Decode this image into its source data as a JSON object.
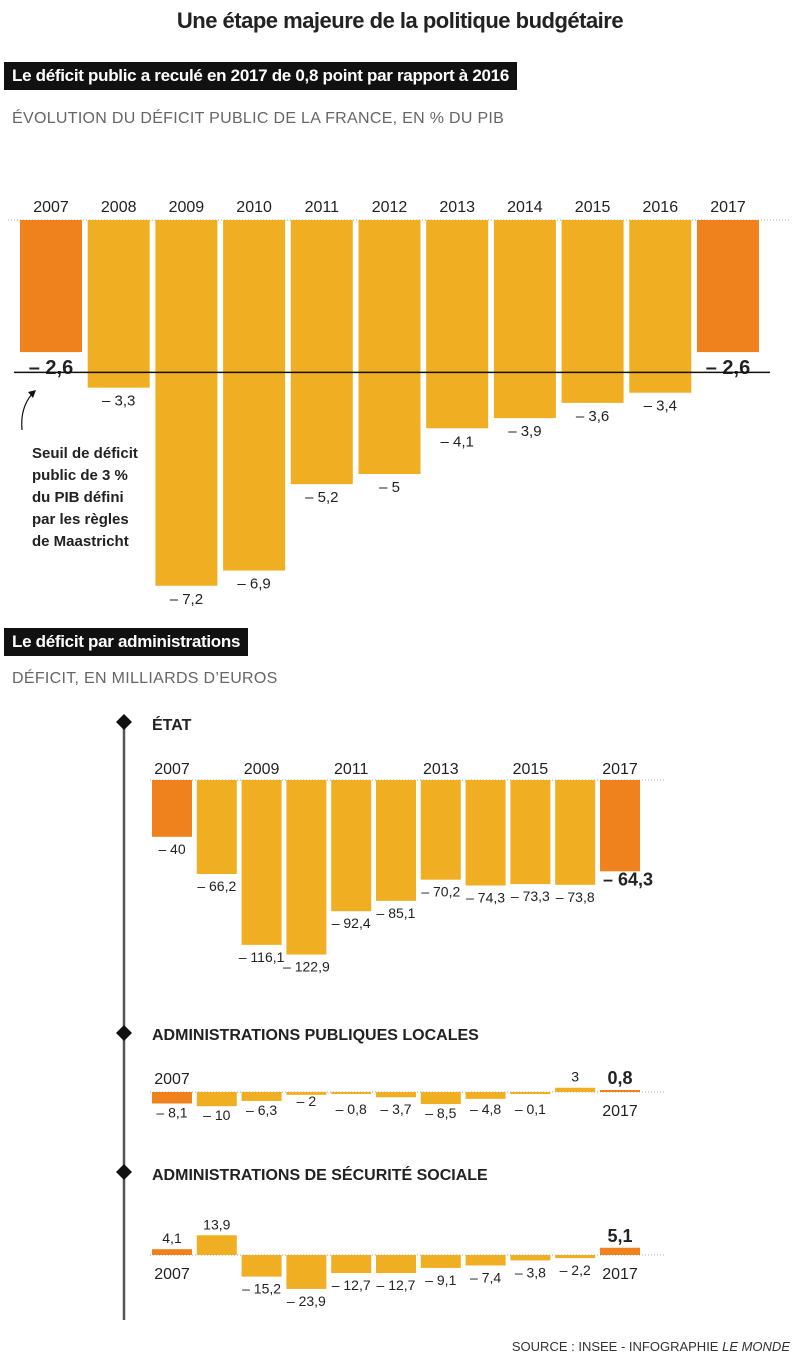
{
  "title": "Une étape majeure de la politique budgétaire",
  "section1": {
    "band": "Le déficit public a reculé en 2017 de 0,8 point par rapport à 2016",
    "subtitle": "ÉVOLUTION DU DÉFICIT PUBLIC DE LA FRANCE, EN % DU PIB"
  },
  "section2": {
    "band": "Le déficit par administrations",
    "subtitle": "DÉFICIT, EN  MILLIARDS D’EUROS"
  },
  "source": "SOURCE : INSEE - INFOGRAPHIE ",
  "source_brand": "LE MONDE",
  "colors": {
    "highlight": "#f0821e",
    "bar": "#f0ae23",
    "axis": "#111111"
  },
  "chart_data": [
    {
      "type": "bar",
      "title": "ÉVOLUTION DU DÉFICIT PUBLIC DE LA FRANCE, EN % DU PIB",
      "categories": [
        "2007",
        "2008",
        "2009",
        "2010",
        "2011",
        "2012",
        "2013",
        "2014",
        "2015",
        "2016",
        "2017"
      ],
      "values": [
        -2.6,
        -3.3,
        -7.2,
        -6.9,
        -5.2,
        -5,
        -4.1,
        -3.9,
        -3.6,
        -3.4,
        -2.6
      ],
      "labels": [
        "– 2,6",
        "– 3,3",
        "– 7,2",
        "– 6,9",
        "– 5,2",
        "– 5",
        "– 4,1",
        "– 3,9",
        "– 3,6",
        "– 3,4",
        "– 2,6"
      ],
      "highlight": [
        "2007",
        "2017"
      ],
      "reference_line": {
        "value": -3,
        "annotation": [
          "Seuil de déficit",
          "public de 3 %",
          "du PIB défini",
          "par les règles",
          "de Maastricht"
        ]
      }
    },
    {
      "type": "bar",
      "title": "ÉTAT",
      "categories": [
        "2007",
        "2008",
        "2009",
        "2010",
        "2011",
        "2012",
        "2013",
        "2014",
        "2015",
        "2016",
        "2017"
      ],
      "tick_labels": [
        "2007",
        "2009",
        "2011",
        "2013",
        "2015",
        "2017"
      ],
      "values": [
        -40,
        -66.2,
        -116.1,
        -122.9,
        -92.4,
        -85.1,
        -70.2,
        -74.3,
        -73.3,
        -73.8,
        -64.3
      ],
      "labels": [
        "– 40",
        "– 66,2",
        "– 116,1",
        "– 122,9",
        "– 92,4",
        "– 85,1",
        "– 70,2",
        "– 74,3",
        "– 73,3",
        "– 73,8",
        "– 64,3"
      ],
      "highlight": [
        "2007",
        "2017"
      ]
    },
    {
      "type": "bar",
      "title": "ADMINISTRATIONS PUBLIQUES LOCALES",
      "categories": [
        "2007",
        "2008",
        "2009",
        "2010",
        "2011",
        "2012",
        "2013",
        "2014",
        "2015",
        "2016",
        "2017"
      ],
      "tick_labels": [
        "2007",
        "2017"
      ],
      "values": [
        -8.1,
        -10,
        -6.3,
        -2,
        -0.8,
        -3.7,
        -8.5,
        -4.8,
        -0.1,
        3,
        0.8
      ],
      "labels": [
        "– 8,1",
        "– 10",
        "– 6,3",
        "– 2",
        "– 0,8",
        "– 3,7",
        "– 8,5",
        "– 4,8",
        "– 0,1",
        "3",
        "0,8"
      ],
      "highlight": [
        "2007",
        "2017"
      ]
    },
    {
      "type": "bar",
      "title": "ADMINISTRATIONS DE SÉCURITÉ SOCIALE",
      "categories": [
        "2007",
        "2008",
        "2009",
        "2010",
        "2011",
        "2012",
        "2013",
        "2014",
        "2015",
        "2016",
        "2017"
      ],
      "tick_labels": [
        "2007",
        "2017"
      ],
      "values": [
        4.1,
        13.9,
        -15.2,
        -23.9,
        -12.7,
        -12.7,
        -9.1,
        -7.4,
        -3.8,
        -2.2,
        5.1
      ],
      "labels": [
        "4,1",
        "13,9",
        "– 15,2",
        "– 23,9",
        "– 12,7",
        "– 12,7",
        "– 9,1",
        "– 7,4",
        "– 3,8",
        "– 2,2",
        "5,1"
      ],
      "highlight": [
        "2007",
        "2017"
      ]
    }
  ]
}
